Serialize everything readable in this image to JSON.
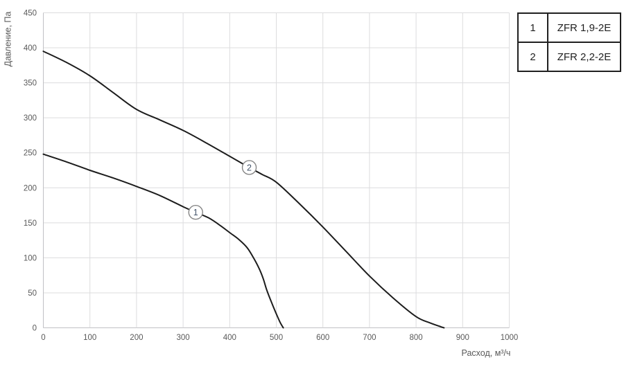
{
  "chart": {
    "y_axis_title": "Давление, Па",
    "x_axis_title": "Расход, м³/ч"
  },
  "legend": {
    "rows": [
      {
        "num": "1",
        "label": "ZFR 1,9-2E"
      },
      {
        "num": "2",
        "label": "ZFR 2,2-2E"
      }
    ]
  },
  "chart_data": {
    "type": "line",
    "title": "",
    "xlabel": "Расход, м³/ч",
    "ylabel": "Давление, Па",
    "xlim": [
      0,
      1000
    ],
    "ylim": [
      0,
      450
    ],
    "xticks": [
      0,
      100,
      200,
      300,
      400,
      500,
      600,
      700,
      800,
      900,
      1000
    ],
    "yticks": [
      0,
      50,
      100,
      150,
      200,
      250,
      300,
      350,
      400,
      450
    ],
    "grid": true,
    "legend_position": "top-right",
    "series": [
      {
        "name": "ZFR 1,9-2E",
        "marker": {
          "label": "1",
          "x": 327,
          "y": 165
        },
        "points": [
          [
            0,
            248
          ],
          [
            50,
            237
          ],
          [
            100,
            225
          ],
          [
            150,
            214
          ],
          [
            200,
            202
          ],
          [
            250,
            189
          ],
          [
            300,
            173
          ],
          [
            327,
            165
          ],
          [
            355,
            157
          ],
          [
            380,
            146
          ],
          [
            400,
            136
          ],
          [
            420,
            126
          ],
          [
            438,
            114
          ],
          [
            452,
            99
          ],
          [
            463,
            85
          ],
          [
            472,
            70
          ],
          [
            480,
            53
          ],
          [
            490,
            36
          ],
          [
            500,
            20
          ],
          [
            508,
            8
          ],
          [
            515,
            0
          ]
        ]
      },
      {
        "name": "ZFR 2,2-2E",
        "marker": {
          "label": "2",
          "x": 442,
          "y": 229
        },
        "points": [
          [
            0,
            395
          ],
          [
            50,
            379
          ],
          [
            100,
            360
          ],
          [
            150,
            336
          ],
          [
            200,
            312
          ],
          [
            250,
            297
          ],
          [
            300,
            282
          ],
          [
            350,
            264
          ],
          [
            400,
            245
          ],
          [
            442,
            229
          ],
          [
            470,
            219
          ],
          [
            500,
            208
          ],
          [
            550,
            177
          ],
          [
            600,
            144
          ],
          [
            650,
            109
          ],
          [
            700,
            74
          ],
          [
            750,
            43
          ],
          [
            800,
            16
          ],
          [
            830,
            7
          ],
          [
            860,
            0
          ]
        ]
      }
    ],
    "colors": {
      "curve": "#1c1c1c",
      "grid": "#dcdcde",
      "axis": "#c0c0c4",
      "tick_text": "#595959",
      "marker_fill": "#ffffff",
      "marker_stroke": "#858585",
      "marker_number": "#44546a",
      "legend_border": "#1f1f1f",
      "legend_text": "#1f1f1f"
    }
  }
}
